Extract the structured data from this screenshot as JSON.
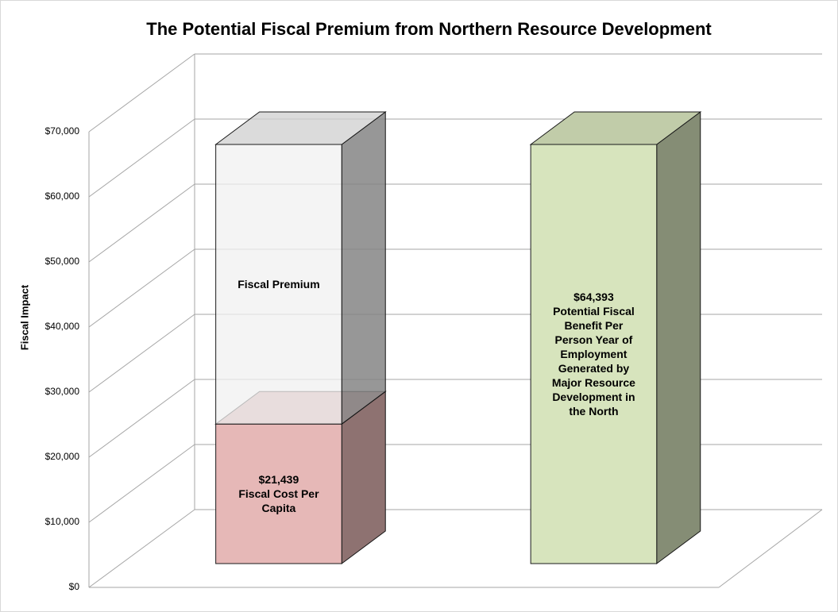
{
  "chart_data": {
    "type": "bar",
    "stacked": true,
    "title": "The Potential Fiscal Premium from Northern Resource Development",
    "y_label": "Fiscal Impact",
    "categories": [
      null,
      null
    ],
    "series": [
      {
        "name": "Fiscal Cost Per Capita",
        "color": "#e6b8b7",
        "values": [
          21439,
          null
        ],
        "value_labels": [
          "$21,439",
          null
        ]
      },
      {
        "name": "Fiscal Premium",
        "color": "rgba(240,240,240,0.75)",
        "values": [
          42954,
          null
        ]
      },
      {
        "name": "Potential Fiscal Benefit Per Person Year of Employment Generated by Major Resource Development in the North",
        "color": "#d7e4bd",
        "values": [
          null,
          64393
        ],
        "value_labels": [
          null,
          "$64,393"
        ]
      }
    ],
    "ylim": [
      0,
      70000
    ],
    "yticks": [
      {
        "value": 0,
        "label": "$0"
      },
      {
        "value": 10000,
        "label": "$10,000"
      },
      {
        "value": 20000,
        "label": "$20,000"
      },
      {
        "value": 30000,
        "label": "$30,000"
      },
      {
        "value": 40000,
        "label": "$40,000"
      },
      {
        "value": 50000,
        "label": "$50,000"
      },
      {
        "value": 60000,
        "label": "$60,000"
      },
      {
        "value": 70000,
        "label": "$70,000"
      }
    ],
    "grid": true
  }
}
